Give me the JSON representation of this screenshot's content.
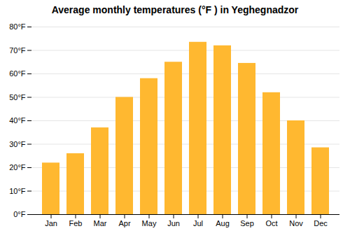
{
  "chart_data": {
    "type": "bar",
    "title": "Average monthly temperatures (°F ) in Yeghegnadzor",
    "categories": [
      "Jan",
      "Feb",
      "Mar",
      "Apr",
      "May",
      "Jun",
      "Jul",
      "Aug",
      "Sep",
      "Oct",
      "Nov",
      "Dec"
    ],
    "values": [
      22,
      26,
      37,
      50,
      58,
      65,
      73.5,
      72,
      64.5,
      52,
      40,
      28.5
    ],
    "color": "#FFB830",
    "ylim": [
      0,
      80
    ],
    "yticks": [
      {
        "value": 0,
        "label": "0°F"
      },
      {
        "value": 10,
        "label": "10°F"
      },
      {
        "value": 20,
        "label": "20°F"
      },
      {
        "value": 30,
        "label": "30°F"
      },
      {
        "value": 40,
        "label": "40°F"
      },
      {
        "value": 50,
        "label": "50°F"
      },
      {
        "value": 60,
        "label": "60°F"
      },
      {
        "value": 70,
        "label": "70°F"
      },
      {
        "value": 80,
        "label": "80°F"
      }
    ],
    "grid": true
  }
}
